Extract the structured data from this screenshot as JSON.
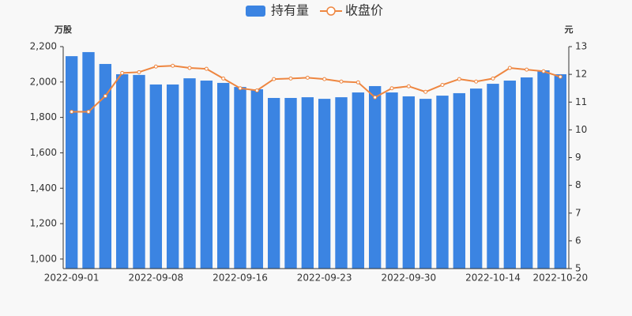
{
  "chart_data": {
    "type": "bar-line",
    "y_label": "万股",
    "y2_label": "元",
    "categories": [
      "2022-09-01",
      null,
      null,
      null,
      null,
      "2022-09-08",
      null,
      null,
      null,
      null,
      "2022-09-16",
      null,
      null,
      null,
      null,
      "2022-09-23",
      null,
      null,
      null,
      null,
      "2022-09-30",
      null,
      null,
      null,
      null,
      "2022-10-14",
      null,
      null,
      null,
      "2022-10-20"
    ],
    "series": [
      {
        "name": "持有量",
        "type": "bar",
        "color": "#3b84e2",
        "values": [
          2146,
          2169,
          2102,
          2044,
          2040,
          1986,
          1986,
          2021,
          2008,
          1995,
          1972,
          1959,
          1910,
          1910,
          1914,
          1905,
          1914,
          1941,
          1977,
          1941,
          1919,
          1905,
          1923,
          1937,
          1963,
          1990,
          2008,
          2026,
          2066,
          2044
        ]
      },
      {
        "name": "收盘价",
        "type": "line",
        "axis": "y2",
        "color": "#ee8640",
        "values": [
          10.65,
          10.65,
          11.22,
          12.05,
          12.08,
          12.28,
          12.31,
          12.23,
          12.2,
          11.85,
          11.5,
          11.42,
          11.83,
          11.85,
          11.88,
          11.83,
          11.74,
          11.71,
          11.17,
          11.5,
          11.57,
          11.37,
          11.62,
          11.83,
          11.74,
          11.85,
          12.23,
          12.17,
          12.11,
          11.91
        ]
      }
    ],
    "ylim": [
      946,
      2200
    ],
    "yticks": [
      {
        "value": 1000,
        "label": "1,000"
      },
      {
        "value": 1200,
        "label": "1,200"
      },
      {
        "value": 1400,
        "label": "1,400"
      },
      {
        "value": 1600,
        "label": "1,600"
      },
      {
        "value": 1800,
        "label": "1,800"
      },
      {
        "value": 2000,
        "label": "2,000"
      },
      {
        "value": 2200,
        "label": "2,200"
      }
    ],
    "y2lim": [
      5,
      13
    ],
    "y2ticks": [
      5,
      6,
      7,
      8,
      9,
      10,
      11,
      12,
      13
    ],
    "grid": false
  }
}
